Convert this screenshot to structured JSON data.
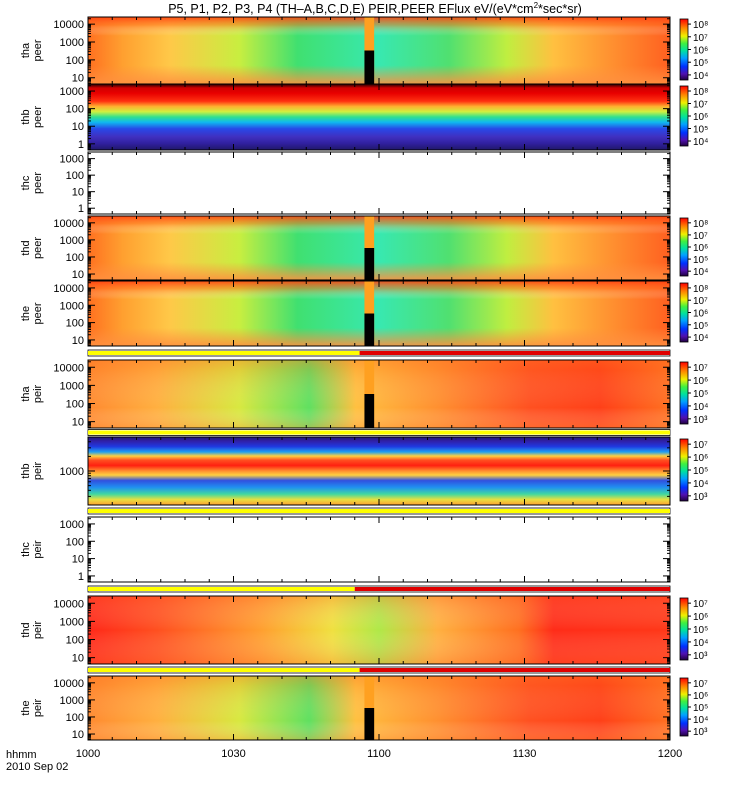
{
  "title_parts": {
    "main": "P5, P1, P2, P3, P4 (TH–A,B,C,D,E) PEIR,PEER EFlux eV/(eV*cm",
    "sup": "2",
    "tail": "*sec*sr)"
  },
  "time_axis": {
    "label": "hhmm",
    "date": "2010 Sep 02",
    "ticks": [
      "1000",
      "1030",
      "1100",
      "1130",
      "1200"
    ]
  },
  "chart_data": {
    "type": "heatmap",
    "x_range": [
      "10:00",
      "12:00"
    ],
    "panels": [
      {
        "id": "tha-peer",
        "ylabel": [
          "tha",
          "peer"
        ],
        "ticks": [
          "10",
          "100",
          "1000",
          "10000"
        ],
        "palette": "magnetosheath",
        "colorbar": [
          "10⁴",
          "10⁵",
          "10⁶",
          "10⁷",
          "10⁸"
        ],
        "data_gap": [
          "10:57",
          "10:59"
        ]
      },
      {
        "id": "thb-peer",
        "ylabel": [
          "thb",
          "peer"
        ],
        "ticks": [
          "1",
          "10",
          "100",
          "1000"
        ],
        "palette": "solarwind",
        "colorbar": [
          "10⁴",
          "10⁵",
          "10⁶",
          "10⁷",
          "10⁸"
        ]
      },
      {
        "id": "thc-peer",
        "ylabel": [
          "thc",
          "peer"
        ],
        "ticks": [
          "1",
          "10",
          "100",
          "1000"
        ],
        "palette": "empty"
      },
      {
        "id": "thd-peer",
        "ylabel": [
          "thd",
          "peer"
        ],
        "ticks": [
          "10",
          "100",
          "1000",
          "10000"
        ],
        "palette": "magnetosheath",
        "colorbar": [
          "10⁴",
          "10⁵",
          "10⁶",
          "10⁷",
          "10⁸"
        ],
        "data_gap": [
          "10:57",
          "10:59"
        ]
      },
      {
        "id": "the-peer",
        "ylabel": [
          "the",
          "peer"
        ],
        "ticks": [
          "10",
          "100",
          "1000",
          "10000"
        ],
        "palette": "magnetosheath",
        "colorbar": [
          "10⁴",
          "10⁵",
          "10⁶",
          "10⁷",
          "10⁸"
        ],
        "data_gap": [
          "10:57",
          "10:59"
        ]
      },
      {
        "id": "tha-peir",
        "ylabel": [
          "tha",
          "peir"
        ],
        "ticks": [
          "10",
          "100",
          "1000",
          "10000"
        ],
        "palette": "ion",
        "colorbar": [
          "10³",
          "10⁴",
          "10⁵",
          "10⁶",
          "10⁷"
        ],
        "data_gap": [
          "10:57",
          "10:59"
        ]
      },
      {
        "id": "thb-peir",
        "ylabel": [
          "thb",
          "peir"
        ],
        "ticks": [
          "1000"
        ],
        "palette": "solarwind-ion",
        "colorbar": [
          "10³",
          "10⁴",
          "10⁵",
          "10⁶",
          "10⁷"
        ]
      },
      {
        "id": "thc-peir",
        "ylabel": [
          "thc",
          "peir"
        ],
        "ticks": [
          "1",
          "10",
          "100",
          "1000"
        ],
        "palette": "empty"
      },
      {
        "id": "thd-peir",
        "ylabel": [
          "thd",
          "peir"
        ],
        "ticks": [
          "10",
          "100",
          "1000",
          "10000"
        ],
        "palette": "ion-red",
        "colorbar": [
          "10³",
          "10⁴",
          "10⁵",
          "10⁶",
          "10⁷"
        ]
      },
      {
        "id": "the-peir",
        "ylabel": [
          "the",
          "peir"
        ],
        "ticks": [
          "10",
          "100",
          "1000",
          "10000"
        ],
        "palette": "ion",
        "colorbar": [
          "10³",
          "10⁴",
          "10⁵",
          "10⁶",
          "10⁷"
        ],
        "data_gap": [
          "10:57",
          "10:59"
        ]
      }
    ],
    "mode_bars": [
      {
        "after_panel": "the-peer",
        "segments": [
          {
            "from": "10:00",
            "to": "10:56",
            "color": "#ffff00"
          },
          {
            "from": "10:56",
            "to": "12:00",
            "color": "#e00000"
          }
        ]
      },
      {
        "after_panel": "tha-peir",
        "segments": [
          {
            "from": "10:00",
            "to": "12:00",
            "color": "#ffff00"
          }
        ]
      },
      {
        "after_panel": "thb-peir",
        "segments": [
          {
            "from": "10:00",
            "to": "12:00",
            "color": "#ffff00"
          }
        ]
      },
      {
        "after_panel": "thc-peir",
        "segments": [
          {
            "from": "10:00",
            "to": "10:55",
            "color": "#ffff00"
          },
          {
            "from": "10:55",
            "to": "12:00",
            "color": "#e00000"
          }
        ]
      },
      {
        "after_panel": "thd-peir",
        "segments": [
          {
            "from": "10:00",
            "to": "10:56",
            "color": "#ffff00"
          },
          {
            "from": "10:56",
            "to": "12:00",
            "color": "#e00000"
          }
        ]
      }
    ]
  }
}
